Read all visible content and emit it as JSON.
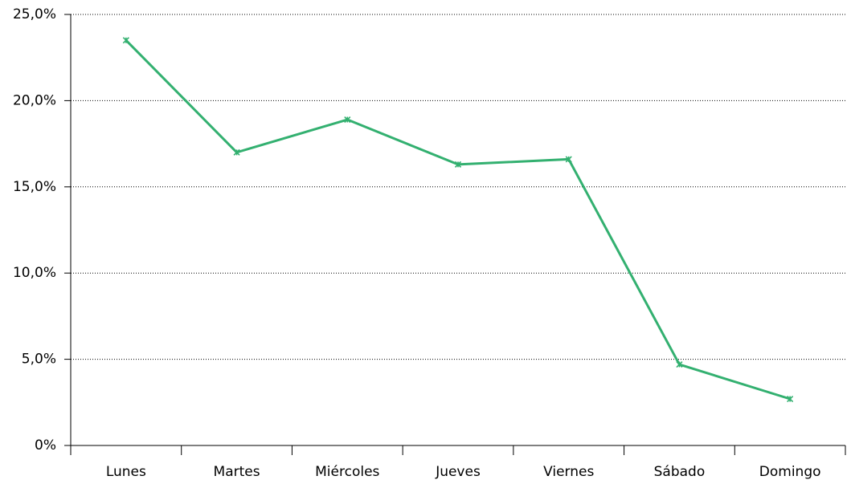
{
  "chart_data": {
    "type": "line",
    "categories": [
      "Lunes",
      "Martes",
      "Miércoles",
      "Jueves",
      "Viernes",
      "Sábado",
      "Domingo"
    ],
    "series": [
      {
        "name": null,
        "color": "#33b070",
        "values": [
          23.5,
          17.0,
          18.9,
          16.3,
          16.6,
          4.7,
          2.7
        ]
      }
    ],
    "ylim": [
      0,
      25
    ],
    "yticks": [
      {
        "value": 0,
        "label": "0%"
      },
      {
        "value": 5,
        "label": "5,0%"
      },
      {
        "value": 10,
        "label": "10,0%"
      },
      {
        "value": 15,
        "label": "15,0%"
      },
      {
        "value": 20,
        "label": "20,0%"
      },
      {
        "value": 25,
        "label": "25,0%"
      }
    ],
    "grid": true
  }
}
